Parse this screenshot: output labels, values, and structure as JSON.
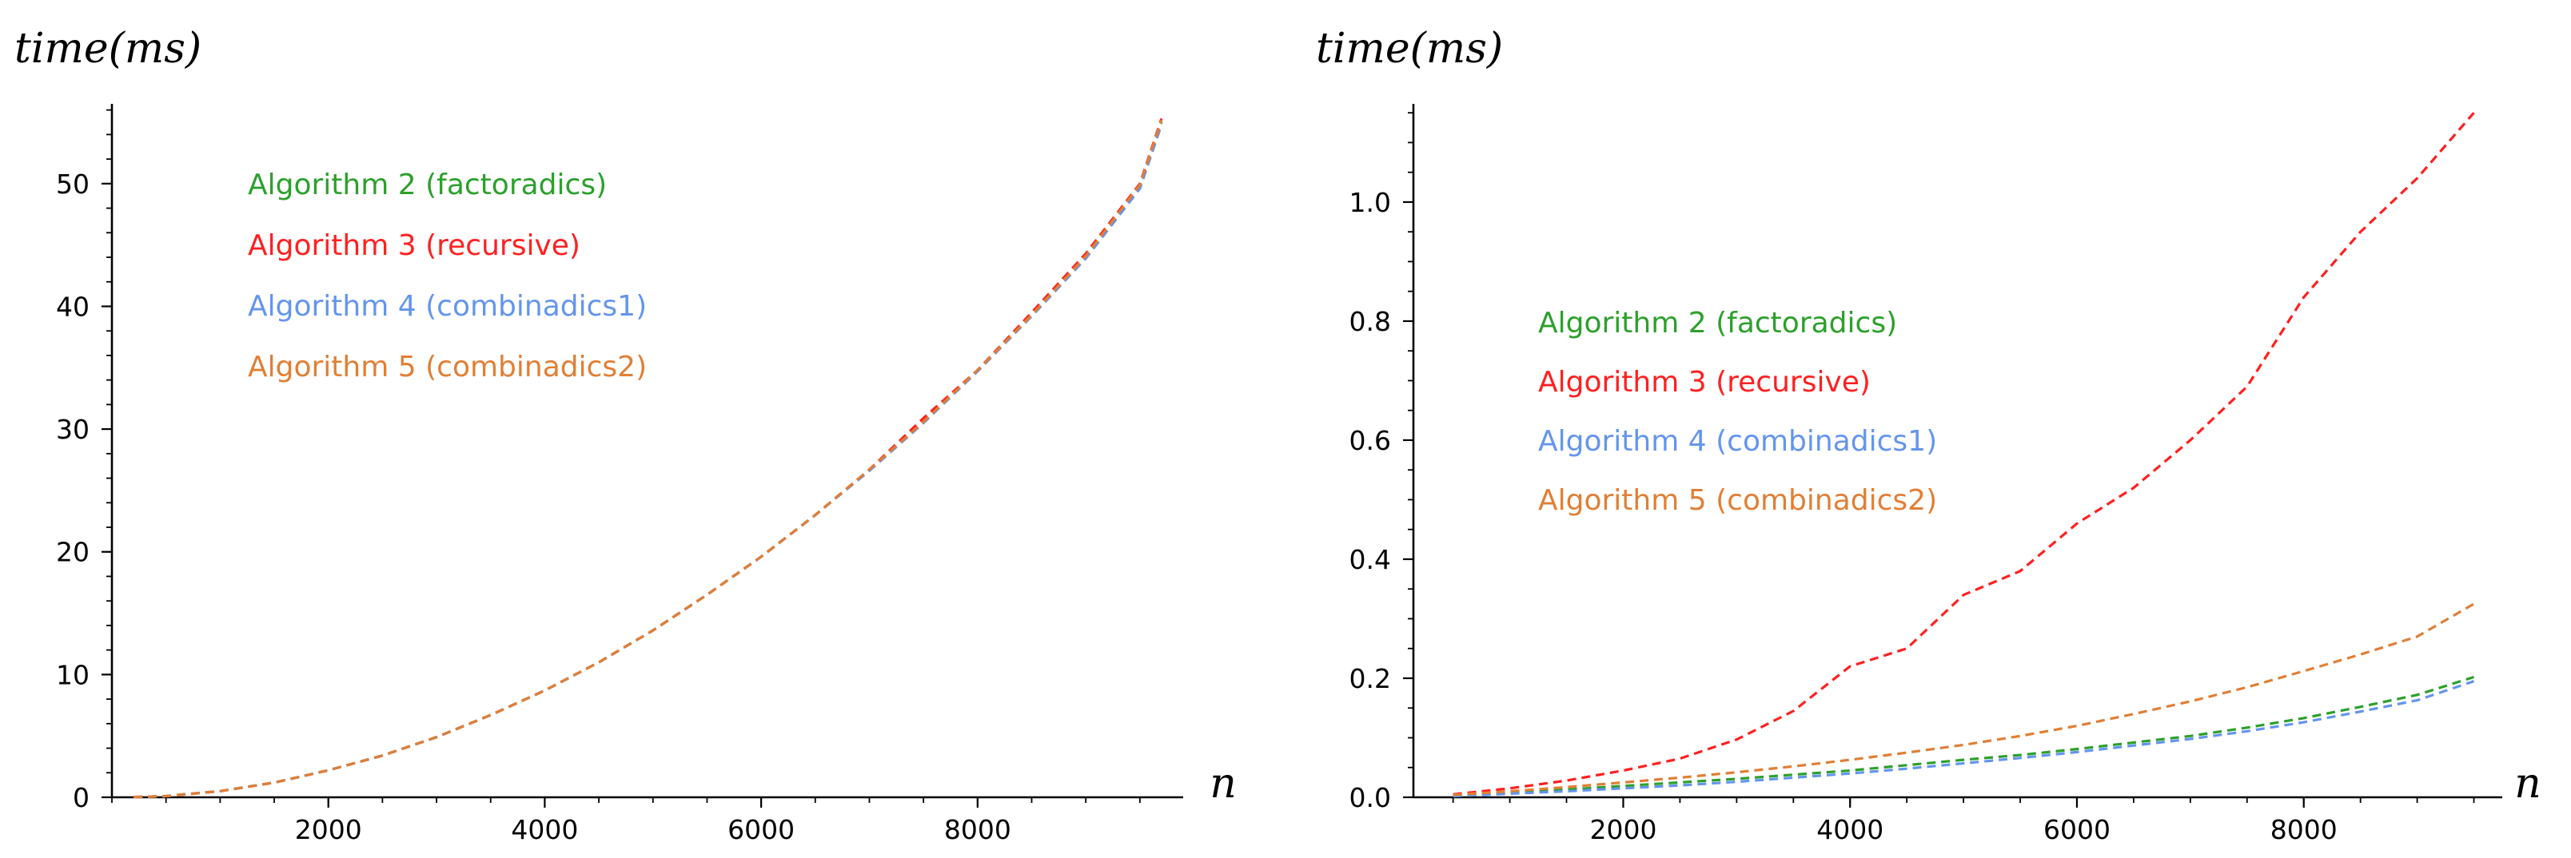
{
  "colors": {
    "alg2": "#2ca02c",
    "alg3": "#ff2020",
    "alg4": "#6495ed",
    "alg5": "#e07f35",
    "axis": "#000000"
  },
  "chart_data": [
    {
      "type": "line",
      "ylabel": "time(ms)",
      "xlabel": "n",
      "xlim": [
        0,
        9900
      ],
      "ylim": [
        0,
        56.5
      ],
      "xticks": [
        2000,
        4000,
        6000,
        8000
      ],
      "yticks": [
        0,
        10,
        20,
        30,
        40,
        50
      ],
      "xtick_labels": [
        "2000",
        "4000",
        "6000",
        "8000"
      ],
      "ytick_labels": [
        "0",
        "10",
        "20",
        "30",
        "40",
        "50"
      ],
      "legend": [
        "Algorithm 2 (factoradics)",
        "Algorithm 3 (recursive)",
        "Algorithm 4 (combinadics1)",
        "Algorithm 5 (combinadics2)"
      ],
      "legend_placement": "upper-left",
      "x": [
        200,
        500,
        1000,
        1500,
        2000,
        2500,
        3000,
        3500,
        4000,
        4500,
        5000,
        5500,
        6000,
        6500,
        7000,
        7500,
        8000,
        8500,
        9000,
        9500,
        9700
      ],
      "series": [
        {
          "name": "Algorithm 2 (factoradics)",
          "color_key": "alg2",
          "values": [
            0.02,
            0.1,
            0.5,
            1.2,
            2.2,
            3.4,
            4.9,
            6.7,
            8.7,
            11.0,
            13.6,
            16.5,
            19.6,
            23.0,
            26.7,
            30.6,
            34.8,
            39.3,
            44.0,
            49.8,
            55.0
          ]
        },
        {
          "name": "Algorithm 3 (recursive)",
          "color_key": "alg3",
          "values": [
            0.02,
            0.1,
            0.5,
            1.2,
            2.2,
            3.4,
            4.9,
            6.7,
            8.7,
            11.0,
            13.6,
            16.5,
            19.6,
            23.0,
            26.7,
            30.9,
            34.8,
            39.5,
            44.3,
            50.0,
            55.3
          ]
        },
        {
          "name": "Algorithm 4 (combinadics1)",
          "color_key": "alg4",
          "values": [
            0.02,
            0.1,
            0.5,
            1.2,
            2.2,
            3.4,
            4.9,
            6.7,
            8.7,
            11.0,
            13.6,
            16.5,
            19.6,
            23.0,
            26.6,
            30.5,
            34.7,
            39.2,
            43.9,
            49.6,
            54.8
          ]
        },
        {
          "name": "Algorithm 5 (combinadics2)",
          "color_key": "alg5",
          "values": [
            0.02,
            0.1,
            0.5,
            1.2,
            2.2,
            3.4,
            4.9,
            6.7,
            8.7,
            11.0,
            13.6,
            16.5,
            19.6,
            23.0,
            26.7,
            30.6,
            34.8,
            39.3,
            44.1,
            49.9,
            55.2
          ]
        }
      ]
    },
    {
      "type": "line",
      "ylabel": "time(ms)",
      "xlabel": "n",
      "xlim": [
        150,
        9750
      ],
      "ylim": [
        0,
        1.165
      ],
      "xticks": [
        2000,
        4000,
        6000,
        8000
      ],
      "yticks": [
        0.0,
        0.2,
        0.4,
        0.6,
        0.8,
        1.0
      ],
      "xtick_labels": [
        "2000",
        "4000",
        "6000",
        "8000"
      ],
      "ytick_labels": [
        "0.0",
        "0.2",
        "0.4",
        "0.6",
        "0.8",
        "1.0"
      ],
      "legend": [
        "Algorithm 2 (factoradics)",
        "Algorithm 3 (recursive)",
        "Algorithm 4 (combinadics1)",
        "Algorithm 5 (combinadics2)"
      ],
      "legend_placement": "center-left",
      "x": [
        500,
        1000,
        1500,
        2000,
        2500,
        3000,
        3500,
        4000,
        4500,
        5000,
        5500,
        6000,
        6500,
        7000,
        7500,
        8000,
        8500,
        9000,
        9500
      ],
      "series": [
        {
          "name": "Algorithm 2 (factoradics)",
          "color_key": "alg2",
          "values": [
            0.003,
            0.008,
            0.013,
            0.019,
            0.025,
            0.031,
            0.038,
            0.045,
            0.054,
            0.063,
            0.071,
            0.081,
            0.092,
            0.103,
            0.117,
            0.133,
            0.152,
            0.172,
            0.202
          ]
        },
        {
          "name": "Algorithm 3 (recursive)",
          "color_key": "alg3",
          "values": [
            0.005,
            0.015,
            0.028,
            0.045,
            0.065,
            0.097,
            0.145,
            0.22,
            0.25,
            0.34,
            0.38,
            0.46,
            0.52,
            0.6,
            0.69,
            0.84,
            0.95,
            1.04,
            1.15
          ]
        },
        {
          "name": "Algorithm 4 (combinadics1)",
          "color_key": "alg4",
          "values": [
            0.002,
            0.006,
            0.01,
            0.015,
            0.02,
            0.026,
            0.033,
            0.04,
            0.048,
            0.057,
            0.066,
            0.076,
            0.087,
            0.098,
            0.111,
            0.126,
            0.144,
            0.163,
            0.195
          ]
        },
        {
          "name": "Algorithm 5 (combinadics2)",
          "color_key": "alg5",
          "values": [
            0.004,
            0.01,
            0.017,
            0.025,
            0.033,
            0.042,
            0.052,
            0.063,
            0.075,
            0.088,
            0.103,
            0.12,
            0.14,
            0.161,
            0.185,
            0.212,
            0.24,
            0.27,
            0.325
          ]
        }
      ]
    }
  ]
}
